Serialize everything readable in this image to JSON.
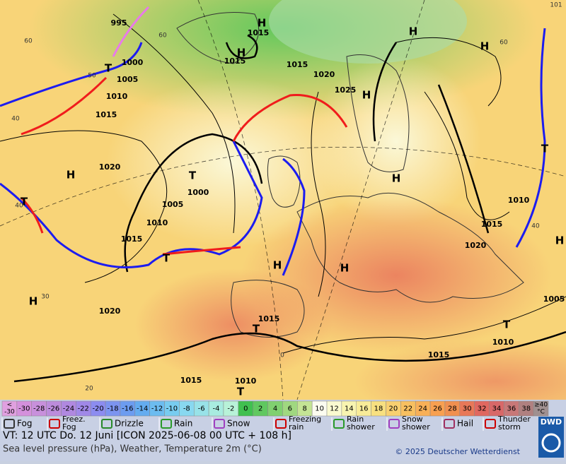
{
  "map": {
    "pressure_labels": [
      "995",
      "1000",
      "1005",
      "1010",
      "1015",
      "1015",
      "1015",
      "1015",
      "1020",
      "1025",
      "1020",
      "1000",
      "1005",
      "1010",
      "1015",
      "1020",
      "1015",
      "1015",
      "1010",
      "1005",
      "1010",
      "1015",
      "1020",
      "1010",
      "1015"
    ],
    "highs": [
      "H",
      "H",
      "H",
      "H",
      "H",
      "H",
      "H",
      "H",
      "H",
      "H",
      "H"
    ],
    "lows": [
      "T",
      "T",
      "T",
      "T",
      "T",
      "T",
      "T",
      "T"
    ],
    "isotherm_labels": [
      "60",
      "60",
      "50",
      "40",
      "40",
      "30",
      "20",
      "60",
      "40",
      "0",
      "101"
    ]
  },
  "scale": {
    "below": [
      "<",
      "-30"
    ],
    "cells": [
      {
        "label": "-30",
        "color": "#d490dc"
      },
      {
        "label": "-28",
        "color": "#c890dc"
      },
      {
        "label": "-26",
        "color": "#bc8cdc"
      },
      {
        "label": "-24",
        "color": "#b088e0"
      },
      {
        "label": "-22",
        "color": "#a088e8"
      },
      {
        "label": "-20",
        "color": "#8c8cf0"
      },
      {
        "label": "-18",
        "color": "#7c94f0"
      },
      {
        "label": "-16",
        "color": "#6c9cf0"
      },
      {
        "label": "-14",
        "color": "#64acf0"
      },
      {
        "label": "-12",
        "color": "#6cbcf0"
      },
      {
        "label": "-10",
        "color": "#78ccf0"
      },
      {
        "label": "-8",
        "color": "#88d8f0"
      },
      {
        "label": "-6",
        "color": "#98e2e8"
      },
      {
        "label": "-4",
        "color": "#a8ece0"
      },
      {
        "label": "-2",
        "color": "#b8f2d8"
      },
      {
        "label": "0",
        "color": "#40c050"
      },
      {
        "label": "2",
        "color": "#60c860"
      },
      {
        "label": "4",
        "color": "#80d070"
      },
      {
        "label": "6",
        "color": "#a0d880"
      },
      {
        "label": "8",
        "color": "#c4e494"
      },
      {
        "label": "10",
        "color": "#fcfcf0"
      },
      {
        "label": "12",
        "color": "#fafad0"
      },
      {
        "label": "14",
        "color": "#f8f4b0"
      },
      {
        "label": "16",
        "color": "#f8ec98"
      },
      {
        "label": "18",
        "color": "#f8e080"
      },
      {
        "label": "20",
        "color": "#f8d070"
      },
      {
        "label": "22",
        "color": "#f8c060"
      },
      {
        "label": "24",
        "color": "#f8b058"
      },
      {
        "label": "26",
        "color": "#f8a050"
      },
      {
        "label": "28",
        "color": "#f09050"
      },
      {
        "label": "30",
        "color": "#e87858"
      },
      {
        "label": "32",
        "color": "#e06860"
      },
      {
        "label": "34",
        "color": "#d86868"
      },
      {
        "label": "36",
        "color": "#c87878"
      },
      {
        "label": "38",
        "color": "#b08080"
      }
    ],
    "above": [
      "≥40",
      "°C"
    ]
  },
  "weather_legend": [
    {
      "lines": [
        "Fog"
      ]
    },
    {
      "lines": [
        "Freez.",
        "Fog"
      ]
    },
    {
      "lines": [
        "Drizzle"
      ]
    },
    {
      "lines": [
        "Rain"
      ]
    },
    {
      "lines": [
        "Snow"
      ]
    },
    {
      "lines": [
        "Freezing",
        "rain"
      ]
    },
    {
      "lines": [
        "Rain",
        "shower"
      ]
    },
    {
      "lines": [
        "Snow",
        "shower"
      ]
    },
    {
      "lines": [
        "Hail"
      ]
    },
    {
      "lines": [
        "Thunder",
        "storm"
      ]
    }
  ],
  "footer": {
    "valid_time": "VT: 12 UTC Do.  12 Juni [ICON 2025-06-08  00 UTC + 108 h]",
    "description": "Sea level pressure (hPa), Weather, Temperature 2m (°C)",
    "copyright": "© 2025 Deutscher Wetterdienst",
    "logo": "DWD"
  }
}
